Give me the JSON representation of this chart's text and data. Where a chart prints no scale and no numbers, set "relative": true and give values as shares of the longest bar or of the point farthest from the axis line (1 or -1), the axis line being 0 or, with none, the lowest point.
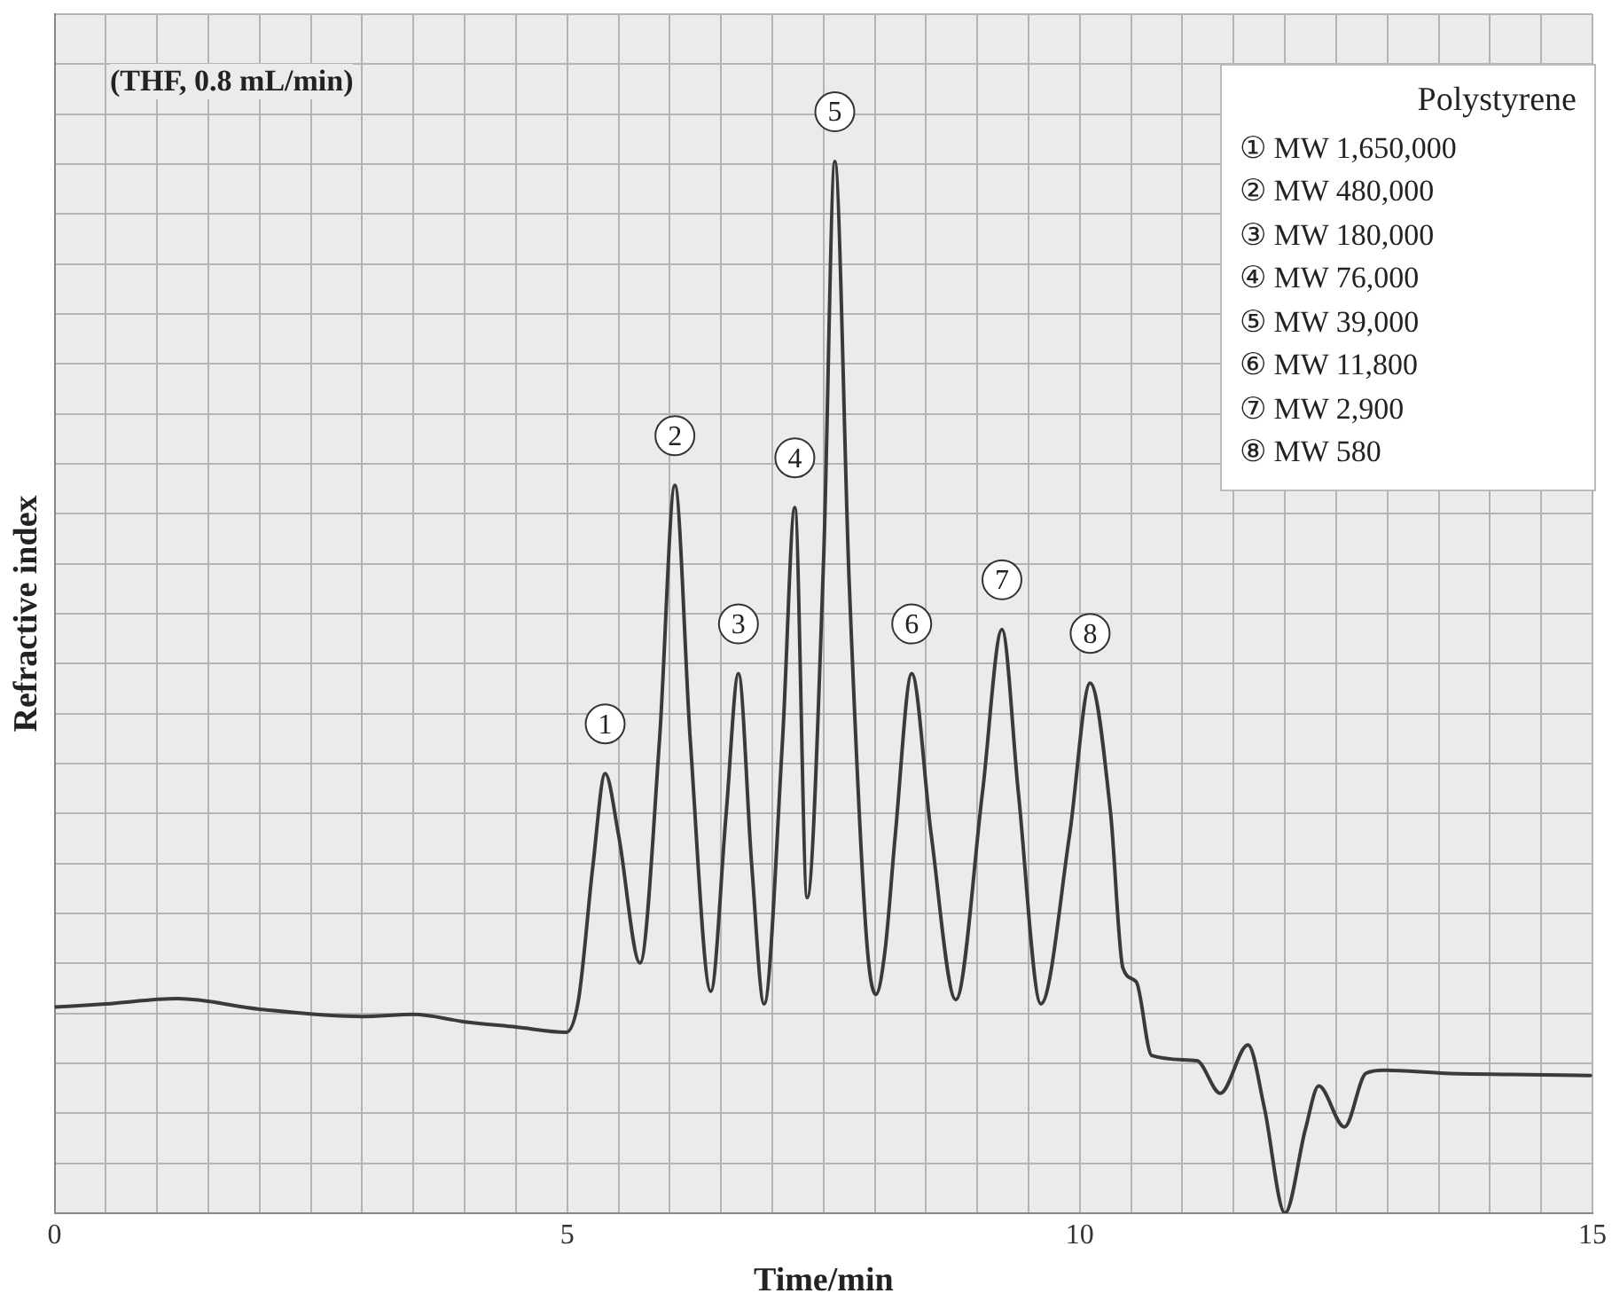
{
  "chart_data": {
    "type": "line",
    "relative": true,
    "xlabel": "Time/min",
    "ylabel": "Refractive index",
    "x": [
      0,
      0.5,
      1.2,
      2,
      3,
      3.5,
      4,
      4.5,
      4.99,
      5.11,
      5.25,
      5.37,
      5.5,
      5.71,
      5.9,
      6.05,
      6.2,
      6.4,
      6.55,
      6.67,
      6.8,
      6.92,
      7.1,
      7.22,
      7.34,
      7.5,
      7.61,
      7.75,
      7.92,
      8.01,
      8.1,
      8.2,
      8.36,
      8.55,
      8.79,
      9.05,
      9.24,
      9.4,
      9.62,
      9.9,
      10.1,
      10.3,
      10.42,
      10.55,
      10.7,
      11.14,
      11.37,
      11.64,
      11.8,
      12.0,
      12.2,
      12.33,
      12.58,
      12.79,
      12.97,
      13.57,
      14.2,
      14.98
    ],
    "series": [
      {
        "color": "#3a3a3a",
        "values": [
          0.196,
          0.199,
          0.204,
          0.194,
          0.187,
          0.189,
          0.182,
          0.177,
          0.172,
          0.203,
          0.33,
          0.418,
          0.36,
          0.238,
          0.45,
          0.692,
          0.45,
          0.211,
          0.38,
          0.513,
          0.33,
          0.199,
          0.45,
          0.671,
          0.3,
          0.62,
          1.0,
          0.6,
          0.26,
          0.208,
          0.25,
          0.36,
          0.513,
          0.36,
          0.203,
          0.4,
          0.555,
          0.4,
          0.199,
          0.36,
          0.504,
          0.38,
          0.233,
          0.22,
          0.15,
          0.145,
          0.114,
          0.16,
          0.1,
          0.0,
          0.08,
          0.121,
          0.082,
          0.133,
          0.136,
          0.133,
          0.132,
          0.131
        ]
      }
    ],
    "xlim": [
      0,
      15
    ],
    "xticks": [
      0,
      {
        "value": 0.5,
        "label": null
      },
      {
        "value": 1,
        "label": null
      },
      {
        "value": 1.5,
        "label": null
      },
      {
        "value": 2,
        "label": null
      },
      {
        "value": 2.5,
        "label": null
      },
      {
        "value": 3,
        "label": null
      },
      {
        "value": 3.5,
        "label": null
      },
      {
        "value": 4,
        "label": null
      },
      {
        "value": 4.5,
        "label": null
      },
      5,
      {
        "value": 5.5,
        "label": null
      },
      {
        "value": 6,
        "label": null
      },
      {
        "value": 6.5,
        "label": null
      },
      {
        "value": 7,
        "label": null
      },
      {
        "value": 7.5,
        "label": null
      },
      {
        "value": 8,
        "label": null
      },
      {
        "value": 8.5,
        "label": null
      },
      {
        "value": 9,
        "label": null
      },
      {
        "value": 9.5,
        "label": null
      },
      10,
      {
        "value": 10.5,
        "label": null
      },
      {
        "value": 11,
        "label": null
      },
      {
        "value": 11.5,
        "label": null
      },
      {
        "value": 12,
        "label": null
      },
      {
        "value": 12.5,
        "label": null
      },
      {
        "value": 13,
        "label": null
      },
      {
        "value": 13.5,
        "label": null
      },
      {
        "value": 14,
        "label": null
      },
      {
        "value": 14.5,
        "label": null
      },
      15
    ],
    "grid": true,
    "marker": "none",
    "line_style": "solid",
    "legend": false,
    "annotations": [
      "(THF, 0.8 mL/min)",
      "Polystyrene",
      "① MW 1,650,000",
      "② MW 480,000",
      "③ MW 180,000",
      "④ MW 76,000",
      "⑤ MW 39,000",
      "⑥ MW 11,800",
      "⑦ MW 2,900",
      "⑧ MW 580",
      {
        "text": "1",
        "x": 5.37,
        "y": 0.418
      },
      {
        "text": "2",
        "x": 6.05,
        "y": 0.692
      },
      {
        "text": "3",
        "x": 6.67,
        "y": 0.513
      },
      {
        "text": "4",
        "x": 7.22,
        "y": 0.671
      },
      {
        "text": "5",
        "x": 7.61,
        "y": 1.0
      },
      {
        "text": "6",
        "x": 8.36,
        "y": 0.513
      },
      {
        "text": "7",
        "x": 9.24,
        "y": 0.555
      },
      {
        "text": "8",
        "x": 10.1,
        "y": 0.504
      }
    ]
  }
}
